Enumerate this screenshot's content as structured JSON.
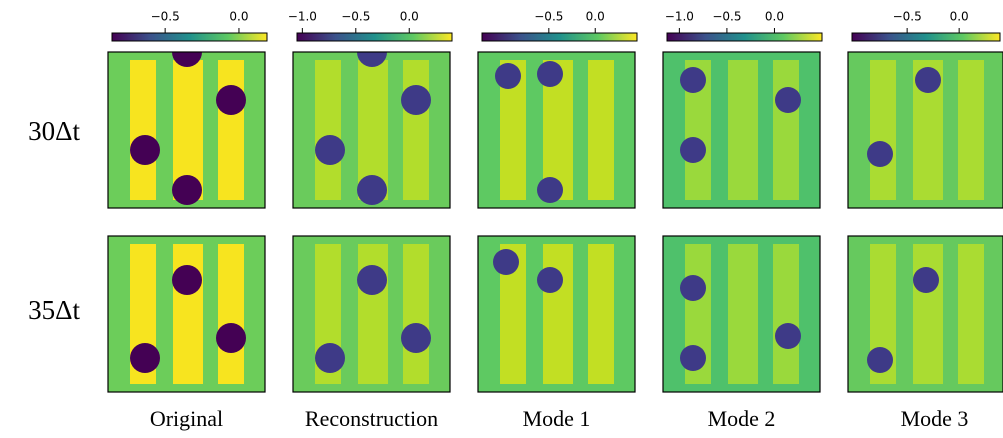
{
  "row_labels": [
    "30Δt",
    "35Δt"
  ],
  "panels": [
    {
      "title": "Original",
      "colorbar_lim": [
        -0.86,
        0.19
      ],
      "colorbar_ticks": [
        {
          "value": -0.5,
          "label": "−0.5"
        },
        {
          "value": 0,
          "label": "0.0"
        }
      ]
    },
    {
      "title": "Reconstruction",
      "colorbar_lim": [
        -1.05,
        0.4
      ],
      "colorbar_ticks": [
        {
          "value": -1.0,
          "label": "−1.0"
        },
        {
          "value": -0.5,
          "label": "−0.5"
        },
        {
          "value": 0,
          "label": "0.0"
        }
      ]
    },
    {
      "title": "Mode 1",
      "colorbar_lim": [
        -1.22,
        0.45
      ],
      "colorbar_ticks": [
        {
          "value": -0.5,
          "label": "−0.5"
        },
        {
          "value": 0,
          "label": "0.0"
        }
      ]
    },
    {
      "title": "Mode 2",
      "colorbar_lim": [
        -1.13,
        0.5
      ],
      "colorbar_ticks": [
        {
          "value": -1.0,
          "label": "−1.0"
        },
        {
          "value": -0.5,
          "label": "−0.5"
        },
        {
          "value": 0,
          "label": "0.0"
        }
      ]
    },
    {
      "title": "Mode 3",
      "colorbar_lim": [
        -1.03,
        0.46
      ],
      "colorbar_ticks": [
        {
          "value": -0.5,
          "label": "−0.5"
        },
        {
          "value": 0,
          "label": "0.0"
        }
      ]
    }
  ]
}
